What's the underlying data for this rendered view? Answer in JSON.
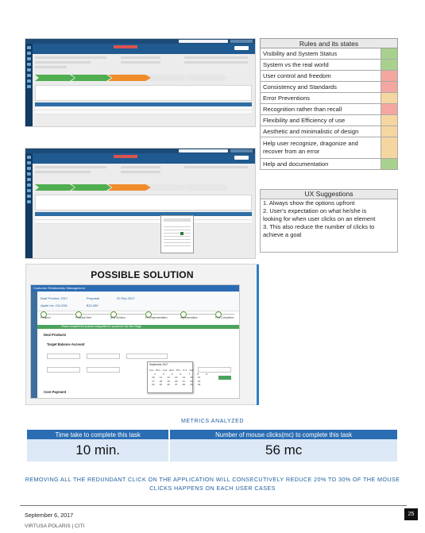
{
  "rules_table": {
    "header": "Rules and its states",
    "rows": [
      {
        "label": "Visibility and System Status",
        "state_color": "#a9d18e"
      },
      {
        "label": "System vs the real world",
        "state_color": "#a9d18e"
      },
      {
        "label": "User control and freedom",
        "state_color": "#f4a6a0"
      },
      {
        "label": "Consistency and Standards",
        "state_color": "#f4a6a0"
      },
      {
        "label": "Error Preventions",
        "state_color": "#f6d6a0"
      },
      {
        "label": "Recognition rather than recall",
        "state_color": "#f4a6a0"
      },
      {
        "label": "Flexibility and Efficiency of use",
        "state_color": "#f6d6a0"
      },
      {
        "label": "Aesthetic and minimalistic of design",
        "state_color": "#f6d6a0"
      },
      {
        "label": "Help user recognize, dragonize and recover from an error",
        "state_color": "#f6d6a0"
      },
      {
        "label": "Help and documentation",
        "state_color": "#a9d18e"
      }
    ]
  },
  "ux_suggestions": {
    "header": "UX Suggestions",
    "items": [
      "1. Always show the options upfront",
      "2. User's expectation on what he/she is",
      "looking for when user clicks on an element",
      "3. This also reduce the number of clicks to",
      "achieve a goal"
    ]
  },
  "solution": {
    "title": "POSSIBLE SOLUTION",
    "app_title": "Customer Relationship Management",
    "fields": {
      "name": "Deal Product, 2017",
      "account": "Apple Inc. CA USA",
      "stage": "Proposal",
      "amount": "$12,400",
      "close_date": "20 Sep 2017"
    },
    "path_steps": [
      "Prospect",
      "Proposal Sent",
      "Best Solution",
      "Pre-Implementation",
      "Implementation",
      "Post Completion"
    ],
    "banner": "Please complete the product configuration to proceed to the Next Stage",
    "sections": [
      "Deal Products",
      "Target Balance Account",
      "Core Payment"
    ],
    "calendar_month": "September 2017",
    "calendar_days": "Sun Mon Tue Wed Thu Fri Sat\n  3   4   5   6   7   8   9\n 10  11  12  13  14  15  16\n 17  18  19  20  21  22  23\n 24  25  26  27  28  29  30"
  },
  "metrics": {
    "title": "METRICS ANALYZED",
    "columns": [
      "Time take to complete this task",
      "Number of mouse clicks(mc) to complete this task"
    ],
    "values": [
      "10 min.",
      "56 mc"
    ],
    "note": "REMOVING ALL THE REDUNDANT CLICK ON THE APPLICATION WILL CONSECUTIVELY REDUCE 20% TO 30% OF THE MOUSE CLICKS HAPPENS ON EACH USER CASES"
  },
  "footer": {
    "date": "September 6, 2017",
    "page": "25",
    "company": "VIRTUSA POLARIS | CITI"
  },
  "colors": {
    "accent": "#2b6db2",
    "green": "#a9d18e",
    "red": "#f4a6a0",
    "amber": "#f6d6a0"
  }
}
